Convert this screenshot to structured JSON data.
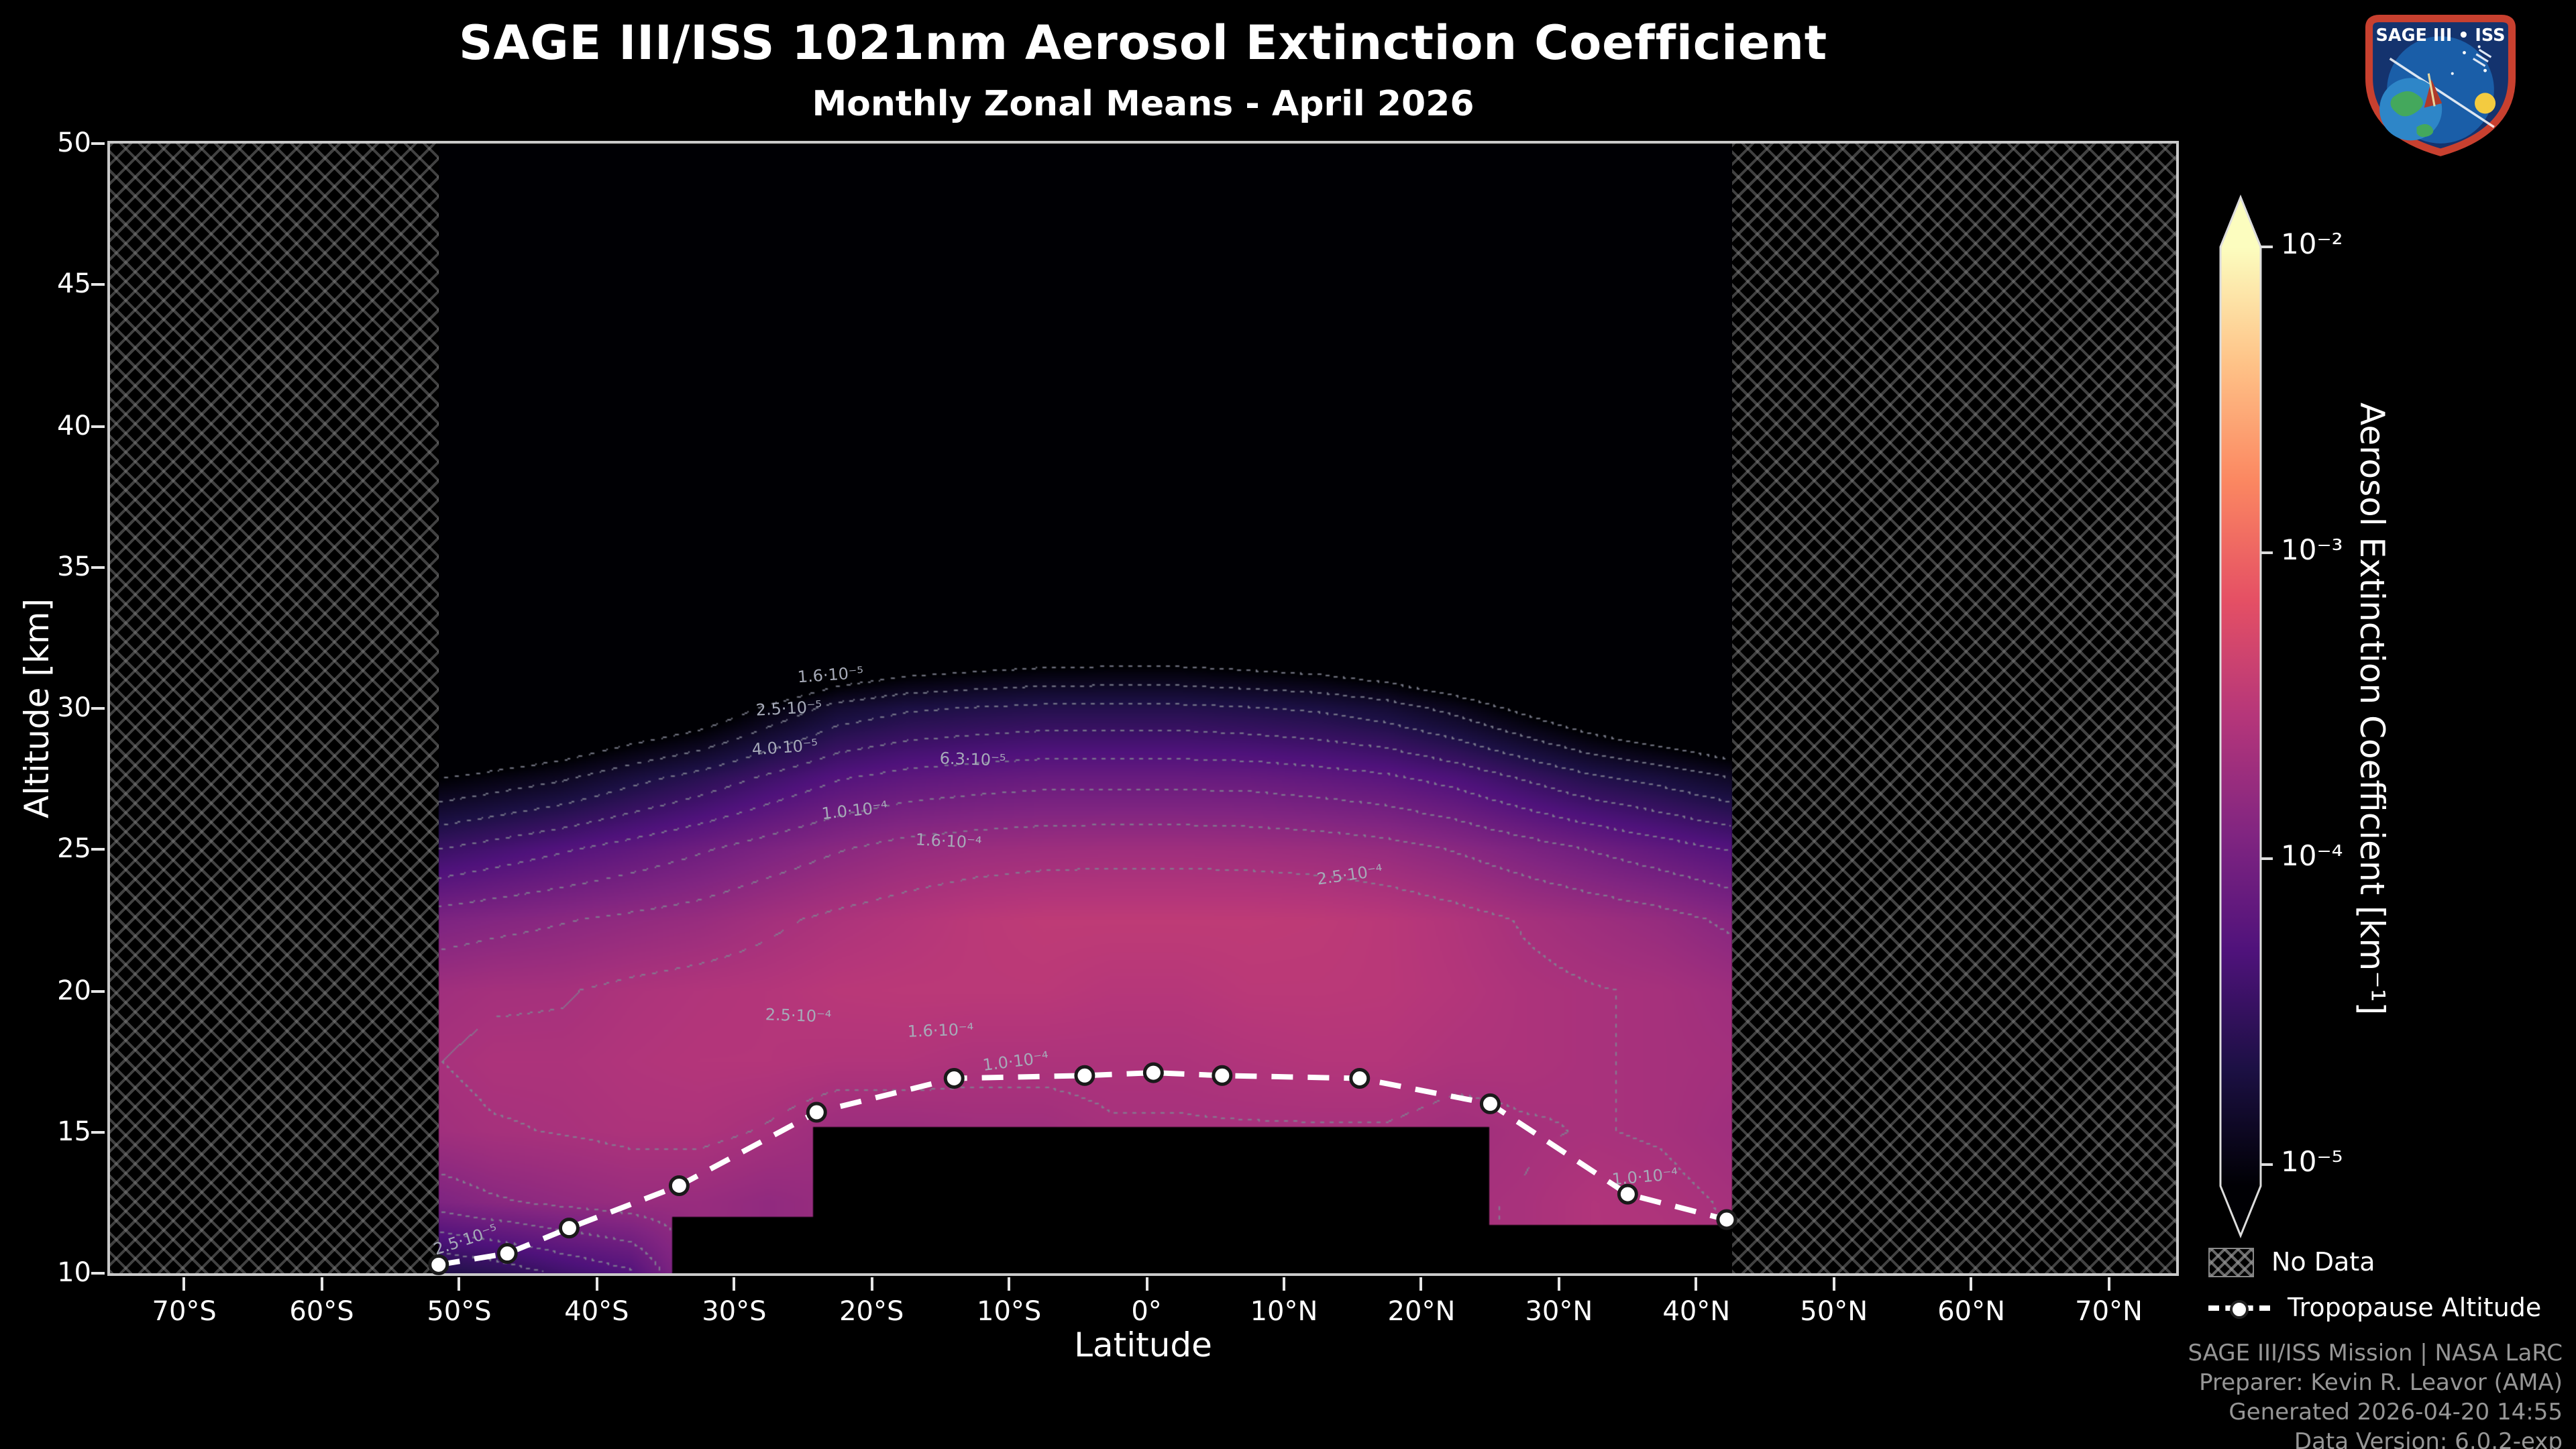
{
  "header": {
    "title": "SAGE III/ISS 1021nm Aerosol Extinction Coefficient",
    "subtitle": "Monthly Zonal Means - April 2026"
  },
  "logo": {
    "title": "SAGE III • ISS"
  },
  "axes": {
    "xlabel": "Latitude",
    "ylabel": "Altitude [km]",
    "xticks": [
      {
        "lat": -70,
        "label": "70°S"
      },
      {
        "lat": -60,
        "label": "60°S"
      },
      {
        "lat": -50,
        "label": "50°S"
      },
      {
        "lat": -40,
        "label": "40°S"
      },
      {
        "lat": -30,
        "label": "30°S"
      },
      {
        "lat": -20,
        "label": "20°S"
      },
      {
        "lat": -10,
        "label": "10°S"
      },
      {
        "lat": 0,
        "label": "0°"
      },
      {
        "lat": 10,
        "label": "10°N"
      },
      {
        "lat": 20,
        "label": "20°N"
      },
      {
        "lat": 30,
        "label": "30°N"
      },
      {
        "lat": 40,
        "label": "40°N"
      },
      {
        "lat": 50,
        "label": "50°N"
      },
      {
        "lat": 60,
        "label": "60°N"
      },
      {
        "lat": 70,
        "label": "70°N"
      }
    ],
    "yticks": [
      {
        "alt": 10,
        "label": "10"
      },
      {
        "alt": 15,
        "label": "15"
      },
      {
        "alt": 20,
        "label": "20"
      },
      {
        "alt": 25,
        "label": "25"
      },
      {
        "alt": 30,
        "label": "30"
      },
      {
        "alt": 35,
        "label": "35"
      },
      {
        "alt": 40,
        "label": "40"
      },
      {
        "alt": 45,
        "label": "45"
      },
      {
        "alt": 50,
        "label": "50"
      }
    ]
  },
  "colorbar": {
    "label": "Aerosol Extinction Coefficient [km⁻¹]",
    "scale": "log",
    "ticks": [
      {
        "exp": -2,
        "label": "10⁻²"
      },
      {
        "exp": -3,
        "label": "10⁻³"
      },
      {
        "exp": -4,
        "label": "10⁻⁴"
      },
      {
        "exp": -5,
        "label": "10⁻⁵"
      }
    ]
  },
  "legend": {
    "no_data_label": "No Data",
    "tropopause_label": "Tropopause Altitude"
  },
  "footer": {
    "line1": "SAGE III/ISS Mission | NASA LaRC",
    "line2": "Preparer: Kevin R. Leavor (AMA)",
    "line3": "Generated 2026-04-20 14:55",
    "line4": "Data Version: 6.0.2-exp"
  },
  "chart_data": {
    "type": "heatmap",
    "title": "SAGE III/ISS 1021nm Aerosol Extinction Coefficient",
    "subtitle": "Monthly Zonal Means - April 2026",
    "xlabel": "Latitude",
    "ylabel": "Altitude [km]",
    "xlim": [
      -75.4,
      74.9
    ],
    "ylim": [
      10,
      50
    ],
    "value_units": "km^-1",
    "value_scale": "log10",
    "colorbar_range_log10": [
      -5,
      -2
    ],
    "data_lat_range": [
      -51.5,
      42.6
    ],
    "bottom_cutoff": [
      {
        "lat_lt": -34.5,
        "alt": 10.0
      },
      {
        "lat_lt": -24.3,
        "alt": 12.0
      },
      {
        "lat_lt": 24.9,
        "alt": 15.2
      },
      {
        "lat_lt": 999,
        "alt": 11.7
      }
    ],
    "lat_grid": [
      -52.5,
      -47.5,
      -42.5,
      -37.5,
      -32.5,
      -27.5,
      -22.5,
      -17.5,
      -12.5,
      -7.5,
      -2.5,
      2.5,
      7.5,
      12.5,
      17.5,
      22.5,
      27.5,
      32.5,
      37.5,
      42.5
    ],
    "alt_grid": [
      10,
      12.5,
      15,
      17.5,
      20,
      22.5,
      25,
      27.5,
      30,
      32.5,
      35,
      37.5,
      40,
      42.5,
      45,
      47.5,
      50
    ],
    "log10_extinction": [
      [
        -4.62,
        -3.92,
        -3.66,
        -3.61,
        -3.66,
        -3.92,
        -4.42,
        -5.02,
        -5.82,
        -6.62,
        -7,
        -7,
        -7,
        -7,
        -7,
        -7,
        -7
      ],
      [
        -4.52,
        -3.82,
        -3.61,
        -3.56,
        -3.62,
        -3.86,
        -4.32,
        -4.92,
        -5.66,
        -6.5,
        -7,
        -7,
        -7,
        -7,
        -7,
        -7,
        -7
      ],
      [
        -4.36,
        -3.76,
        -3.59,
        -3.56,
        -3.61,
        -3.81,
        -4.22,
        -4.82,
        -5.52,
        -6.4,
        -7,
        -7,
        -7,
        -7,
        -7,
        -7,
        -7
      ],
      [
        -4.22,
        -3.71,
        -3.56,
        -3.53,
        -3.56,
        -3.76,
        -4.12,
        -4.66,
        -5.36,
        -6.3,
        -7,
        -7,
        -7,
        -7,
        -7,
        -7,
        -7
      ],
      [
        -3.73,
        -3.71,
        -3.56,
        -3.51,
        -3.53,
        -3.71,
        -4.02,
        -4.52,
        -5.22,
        -6.15,
        -7,
        -7,
        -7,
        -7,
        -7,
        -7,
        -7
      ],
      [
        -3.76,
        -3.76,
        -3.61,
        -3.51,
        -3.51,
        -3.63,
        -3.91,
        -4.36,
        -4.96,
        -5.9,
        -6.9,
        -7,
        -7,
        -7,
        -7,
        -7,
        -7
      ],
      [
        -3.71,
        -3.71,
        -3.69,
        -3.53,
        -3.47,
        -3.56,
        -3.81,
        -4.21,
        -4.73,
        -5.6,
        -6.7,
        -7,
        -7,
        -7,
        -7,
        -7,
        -7
      ],
      [
        -3.71,
        -3.71,
        -3.69,
        -3.53,
        -3.46,
        -3.51,
        -3.73,
        -4.13,
        -4.63,
        -5.46,
        -6.5,
        -7,
        -7,
        -7,
        -7,
        -7,
        -7
      ],
      [
        -3.66,
        -3.66,
        -3.66,
        -3.56,
        -3.46,
        -3.46,
        -3.69,
        -4.09,
        -4.59,
        -5.39,
        -6.4,
        -7,
        -7,
        -7,
        -7,
        -7,
        -7
      ],
      [
        -3.66,
        -3.66,
        -3.66,
        -3.56,
        -3.46,
        -3.43,
        -3.67,
        -4.06,
        -4.56,
        -5.33,
        -6.3,
        -7,
        -7,
        -7,
        -7,
        -7,
        -7
      ],
      [
        -3.61,
        -3.61,
        -3.61,
        -3.56,
        -3.49,
        -3.43,
        -3.66,
        -4.06,
        -4.56,
        -5.31,
        -6.3,
        -7,
        -7,
        -7,
        -7,
        -7,
        -7
      ],
      [
        -3.61,
        -3.61,
        -3.61,
        -3.56,
        -3.49,
        -3.43,
        -3.66,
        -4.06,
        -4.56,
        -5.31,
        -6.3,
        -7,
        -7,
        -7,
        -7,
        -7,
        -7
      ],
      [
        -3.61,
        -3.61,
        -3.61,
        -3.53,
        -3.46,
        -3.43,
        -3.67,
        -4.07,
        -4.59,
        -5.36,
        -6.35,
        -7,
        -7,
        -7,
        -7,
        -7,
        -7
      ],
      [
        -3.61,
        -3.61,
        -3.61,
        -3.51,
        -3.46,
        -3.44,
        -3.69,
        -4.11,
        -4.63,
        -5.41,
        -6.45,
        -7,
        -7,
        -7,
        -7,
        -7,
        -7
      ],
      [
        -3.61,
        -3.61,
        -3.61,
        -3.51,
        -3.47,
        -3.47,
        -3.73,
        -4.16,
        -4.71,
        -5.51,
        -6.55,
        -7,
        -7,
        -7,
        -7,
        -7,
        -7
      ],
      [
        -3.61,
        -3.61,
        -3.65,
        -3.55,
        -3.51,
        -3.53,
        -3.81,
        -4.26,
        -4.86,
        -5.66,
        -6.7,
        -7,
        -7,
        -7,
        -7,
        -7,
        -7
      ],
      [
        -3.59,
        -3.59,
        -3.61,
        -3.56,
        -3.56,
        -3.61,
        -3.91,
        -4.41,
        -5.06,
        -5.86,
        -7,
        -7,
        -7,
        -7,
        -7,
        -7,
        -7
      ],
      [
        -3.53,
        -3.53,
        -3.59,
        -3.59,
        -3.59,
        -3.67,
        -4.01,
        -4.56,
        -5.26,
        -6.1,
        -7,
        -7,
        -7,
        -7,
        -7,
        -7,
        -7
      ],
      [
        -3.53,
        -3.56,
        -3.61,
        -3.61,
        -3.61,
        -3.73,
        -4.11,
        -4.66,
        -5.41,
        -6.3,
        -7,
        -7,
        -7,
        -7,
        -7,
        -7,
        -7
      ],
      [
        -3.59,
        -3.61,
        -3.66,
        -3.63,
        -3.67,
        -3.83,
        -4.21,
        -4.79,
        -5.56,
        -6.5,
        -7,
        -7,
        -7,
        -7,
        -7,
        -7,
        -7
      ]
    ],
    "contour_levels_log10": [
      -5.0,
      -4.8,
      -4.6,
      -4.4,
      -4.2,
      -4.0,
      -3.8,
      -3.6
    ],
    "contour_labels": [
      {
        "text": "1.6·10⁻⁵",
        "lat": -23.0,
        "alt": 31.2,
        "rot": -4
      },
      {
        "text": "2.5·10⁻⁵",
        "lat": -26.0,
        "alt": 30.0,
        "rot": -3
      },
      {
        "text": "4.0·10⁻⁵",
        "lat": -26.3,
        "alt": 28.6,
        "rot": -4
      },
      {
        "text": "6.3·10⁻⁵",
        "lat": -12.6,
        "alt": 28.2,
        "rot": 2
      },
      {
        "text": "1.0·10⁻⁴",
        "lat": -21.2,
        "alt": 26.4,
        "rot": -6
      },
      {
        "text": "1.6·10⁻⁴",
        "lat": -14.4,
        "alt": 25.3,
        "rot": 3
      },
      {
        "text": "2.5·10⁻⁴",
        "lat": 14.8,
        "alt": 24.1,
        "rot": -8
      },
      {
        "text": "2.5·10⁻⁴",
        "lat": -25.3,
        "alt": 19.1,
        "rot": 2
      },
      {
        "text": "1.6·10⁻⁴",
        "lat": -15.0,
        "alt": 18.6,
        "rot": -2
      },
      {
        "text": "1.0·10⁻⁴",
        "lat": -9.5,
        "alt": 17.5,
        "rot": -7
      },
      {
        "text": "1.0·10⁻⁴",
        "lat": 36.3,
        "alt": 13.4,
        "rot": -5
      },
      {
        "text": "2.5·10⁻⁵",
        "lat": -49.5,
        "alt": 11.2,
        "rot": -18
      }
    ],
    "tropopause": {
      "name": "Tropopause Altitude",
      "lat": [
        -51.5,
        -46.5,
        -42.0,
        -34.0,
        -24.0,
        -14.0,
        -4.5,
        0.5,
        5.5,
        15.5,
        25.0,
        35.0,
        42.2
      ],
      "alt": [
        10.3,
        10.7,
        11.6,
        13.1,
        15.7,
        16.9,
        17.0,
        17.1,
        17.0,
        16.9,
        16.0,
        12.8,
        11.9
      ]
    },
    "colormap_anchors": [
      "#000004",
      "#1c1044",
      "#4f127b",
      "#812581",
      "#b5367a",
      "#e55064",
      "#fb8761",
      "#fec287",
      "#fcfdbf"
    ],
    "no_data_hatch_color": "#828282",
    "tropopause_line_color": "#ffffff"
  }
}
